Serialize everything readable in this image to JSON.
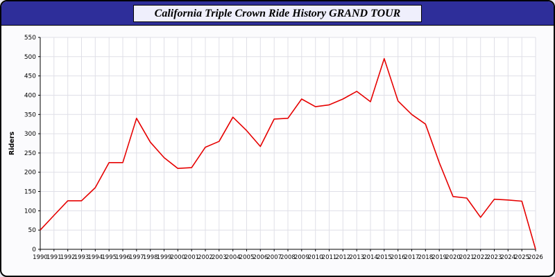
{
  "header": {
    "title": "California Triple Crown Ride History GRAND TOUR"
  },
  "theme": {
    "titlebar_bg": "#2e2e9a",
    "title_box_bg": "#efeffc",
    "line_color": "#e60000",
    "grid_color": "#dfdfe7",
    "axis_color": "#000000",
    "plot_bg": "#ffffff"
  },
  "chart_data": {
    "type": "line",
    "title": "California Triple Crown Ride History GRAND TOUR",
    "xlabel": "",
    "ylabel": "Riders",
    "ylim": [
      0,
      550
    ],
    "y_tick_step": 50,
    "grid": true,
    "legend": "none",
    "categories": [
      "1990",
      "1991",
      "1992",
      "1993",
      "1994",
      "1995",
      "1996",
      "1997",
      "1998",
      "1999",
      "2000",
      "2001",
      "2002",
      "2003",
      "2004",
      "2005",
      "2006",
      "2007",
      "2008",
      "2009",
      "2010",
      "2011",
      "2012",
      "2013",
      "2014",
      "2015",
      "2016",
      "2017",
      "2018",
      "2019",
      "2020",
      "2021",
      "2022",
      "2023",
      "2024",
      "2025",
      "2026"
    ],
    "values": [
      50,
      88,
      126,
      126,
      160,
      225,
      225,
      340,
      278,
      238,
      210,
      212,
      265,
      280,
      343,
      308,
      267,
      338,
      340,
      390,
      370,
      375,
      390,
      410,
      383,
      495,
      385,
      350,
      325,
      225,
      137,
      133,
      83,
      130,
      128,
      125,
      0
    ]
  }
}
